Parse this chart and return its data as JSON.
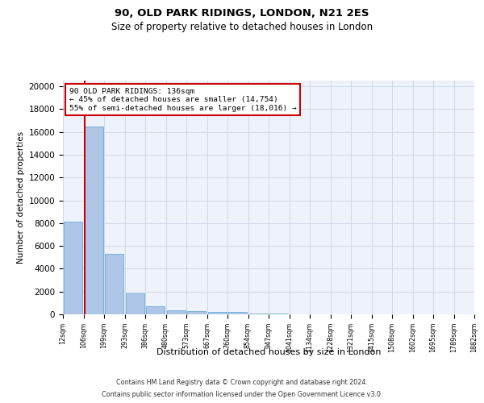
{
  "title1": "90, OLD PARK RIDINGS, LONDON, N21 2ES",
  "title2": "Size of property relative to detached houses in London",
  "xlabel": "Distribution of detached houses by size in London",
  "ylabel": "Number of detached properties",
  "bar_values": [
    8100,
    16500,
    5300,
    1850,
    700,
    370,
    280,
    200,
    200,
    100,
    50,
    30,
    20,
    10,
    5,
    5,
    3,
    2,
    2,
    1
  ],
  "x_tick_labels": [
    "12sqm",
    "106sqm",
    "199sqm",
    "293sqm",
    "386sqm",
    "480sqm",
    "573sqm",
    "667sqm",
    "760sqm",
    "854sqm",
    "947sqm",
    "1041sqm",
    "1134sqm",
    "1228sqm",
    "1321sqm",
    "1415sqm",
    "1508sqm",
    "1602sqm",
    "1695sqm",
    "1789sqm",
    "1882sqm"
  ],
  "bar_color": "#aec6e8",
  "bar_edgecolor": "#6aaad4",
  "annotation_title": "90 OLD PARK RIDINGS: 136sqm",
  "annotation_line1": "← 45% of detached houses are smaller (14,754)",
  "annotation_line2": "55% of semi-detached houses are larger (18,016) →",
  "annotation_box_color": "#ffffff",
  "annotation_box_edgecolor": "#cc0000",
  "red_line_color": "#cc0000",
  "ylim": [
    0,
    20500
  ],
  "yticks": [
    0,
    2000,
    4000,
    6000,
    8000,
    10000,
    12000,
    14000,
    16000,
    18000,
    20000
  ],
  "grid_color": "#d0d8e8",
  "bg_color": "#eef2fa",
  "footer1": "Contains HM Land Registry data © Crown copyright and database right 2024.",
  "footer2": "Contains public sector information licensed under the Open Government Licence v3.0."
}
